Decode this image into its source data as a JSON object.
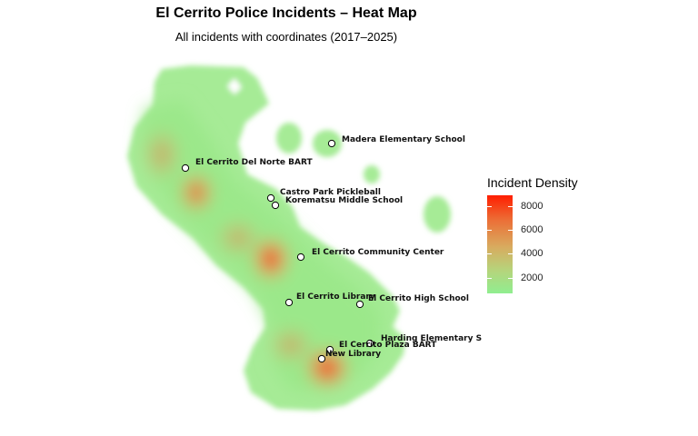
{
  "title": "El Cerrito Police Incidents – Heat Map",
  "subtitle": "All incidents with coordinates (2017–2025)",
  "legend": {
    "title": "Incident Density",
    "ticks": [
      "2000",
      "4000",
      "6000",
      "8000"
    ],
    "colors": {
      "low": "#90ee90",
      "high": "#ff1e00"
    }
  },
  "landmarks": [
    {
      "name": "Madera Elementary School"
    },
    {
      "name": "El Cerrito Del Norte BART"
    },
    {
      "name": "Castro Park Pickleball"
    },
    {
      "name": "Korematsu Middle School"
    },
    {
      "name": "El Cerrito Community Center"
    },
    {
      "name": "El Cerrito Library"
    },
    {
      "name": "El Cerrito High School"
    },
    {
      "name": "Harding Elementary S"
    },
    {
      "name": "El Cerrito Plaza BART"
    },
    {
      "name": "New Library"
    }
  ]
}
